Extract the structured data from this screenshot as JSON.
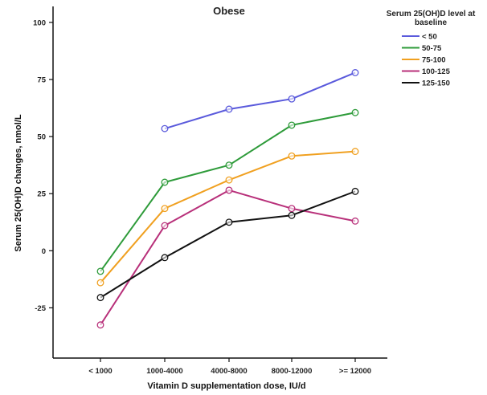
{
  "chart_data": {
    "type": "line",
    "title": "Obese",
    "xlabel": "Vitamin D supplementation dose, IU/d",
    "ylabel": "Serum 25(OH)D changes, nmol/L",
    "categories": [
      "< 1000",
      "1000-4000",
      "4000-8000",
      "8000-12000",
      ">= 12000"
    ],
    "ylim": [
      -47,
      107
    ],
    "yticks": [
      -25,
      0,
      25,
      50,
      75,
      100
    ],
    "grid": false,
    "legend": {
      "title_line1": "Serum 25(OH)D level at",
      "title_line2": "baseline",
      "placement": "top-right"
    },
    "series": [
      {
        "name": "< 50",
        "color": "#5a5adc",
        "values": [
          null,
          53.5,
          62,
          66.5,
          78
        ]
      },
      {
        "name": "50-75",
        "color": "#2e9b3a",
        "values": [
          -9,
          30,
          37.5,
          55,
          60.5
        ]
      },
      {
        "name": "75-100",
        "color": "#f0a020",
        "values": [
          -14,
          18.5,
          31,
          41.5,
          43.5
        ]
      },
      {
        "name": "100-125",
        "color": "#b8307a",
        "values": [
          -32.5,
          11,
          26.5,
          18.5,
          13
        ]
      },
      {
        "name": "125-150",
        "color": "#111111",
        "values": [
          -20.5,
          -3,
          12.5,
          15.5,
          26
        ]
      }
    ]
  }
}
